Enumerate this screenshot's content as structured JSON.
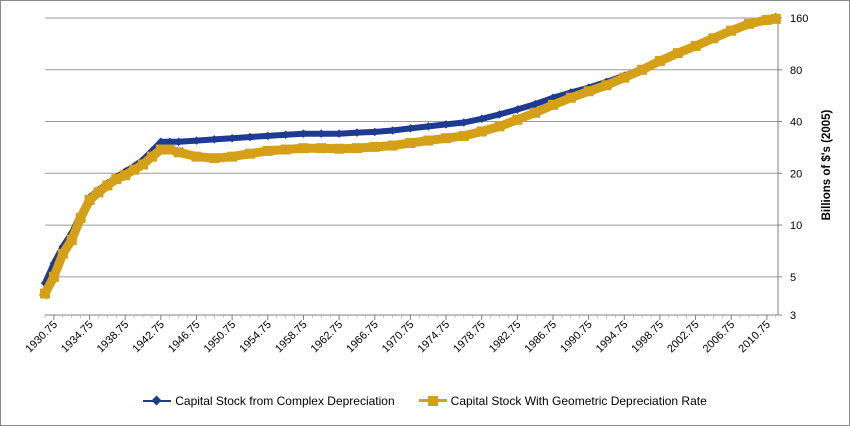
{
  "chart_data": {
    "type": "line",
    "ylabel": "Billions  of $'s (2005)",
    "y_scale": "log",
    "ylim": [
      3,
      160
    ],
    "y_ticks": [
      "3",
      "5",
      "10",
      "20",
      "40",
      "80",
      "160"
    ],
    "y_tick_values": [
      3,
      5,
      10,
      20,
      40,
      80,
      160
    ],
    "xlim": [
      1929.75,
      2012.0
    ],
    "x_tick_labels": [
      "1930.75",
      "1934.75",
      "1938.75",
      "1942.75",
      "1946.75",
      "1950.75",
      "1954.75",
      "1958.75",
      "1962.75",
      "1966.75",
      "1970.75",
      "1974.75",
      "1978.75",
      "1982.75",
      "1986.75",
      "1990.75",
      "1994.75",
      "1998.75",
      "2002.75",
      "2006.75",
      "2010.75"
    ],
    "x_tick_values": [
      1930.75,
      1934.75,
      1938.75,
      1942.75,
      1946.75,
      1950.75,
      1954.75,
      1958.75,
      1962.75,
      1966.75,
      1970.75,
      1974.75,
      1978.75,
      1982.75,
      1986.75,
      1990.75,
      1994.75,
      1998.75,
      2002.75,
      2006.75,
      2010.75
    ],
    "grid": true,
    "legend_position": "bottom",
    "series": [
      {
        "name": "Capital Stock from Complex Depreciation",
        "color": "#1f3a93",
        "marker": "diamond",
        "x": [
          1929.75,
          1930.75,
          1931.75,
          1932.75,
          1933.75,
          1934.75,
          1935.75,
          1936.75,
          1937.75,
          1938.75,
          1939.75,
          1940.75,
          1941.75,
          1942.75,
          1943.75,
          1944.75,
          1946.75,
          1948.75,
          1950.75,
          1952.75,
          1954.75,
          1956.75,
          1958.75,
          1960.75,
          1962.75,
          1964.75,
          1966.75,
          1968.75,
          1970.75,
          1972.75,
          1974.75,
          1976.75,
          1978.75,
          1980.75,
          1982.75,
          1984.75,
          1986.75,
          1988.75,
          1990.75,
          1992.75,
          1994.75,
          1996.75,
          1998.75,
          2000.75,
          2002.75,
          2004.75,
          2006.75,
          2008.75,
          2010.75,
          2011.75
        ],
        "y": [
          4.6,
          6.0,
          7.5,
          9.0,
          11.5,
          14.5,
          16.0,
          17.5,
          19.0,
          20.5,
          22.0,
          24.0,
          27.0,
          30.5,
          30.5,
          30.5,
          31.0,
          31.5,
          32.0,
          32.5,
          33.0,
          33.5,
          34.0,
          34.0,
          34.0,
          34.5,
          34.8,
          35.5,
          36.5,
          37.5,
          38.5,
          39.5,
          41.5,
          44.0,
          47.0,
          50.5,
          55.0,
          59.0,
          63.0,
          68.0,
          74.0,
          81.0,
          90.0,
          100.0,
          110.0,
          122.0,
          135.0,
          148.0,
          158.0,
          162.0
        ]
      },
      {
        "name": "Capital Stock With Geometric Depreciation Rate",
        "color": "#d4a017",
        "marker": "square",
        "x": [
          1929.75,
          1930.75,
          1931.75,
          1932.75,
          1933.75,
          1934.75,
          1935.75,
          1936.75,
          1937.75,
          1938.75,
          1939.75,
          1940.75,
          1941.75,
          1942.75,
          1943.75,
          1944.75,
          1946.75,
          1948.75,
          1950.75,
          1952.75,
          1954.75,
          1956.75,
          1958.75,
          1960.75,
          1962.75,
          1964.75,
          1966.75,
          1968.75,
          1970.75,
          1972.75,
          1974.75,
          1976.75,
          1978.75,
          1980.75,
          1982.75,
          1984.75,
          1986.75,
          1988.75,
          1990.75,
          1992.75,
          1994.75,
          1996.75,
          1998.75,
          2000.75,
          2002.75,
          2004.75,
          2006.75,
          2008.75,
          2010.75,
          2011.75
        ],
        "y": [
          4.0,
          5.0,
          6.8,
          8.2,
          11.0,
          14.0,
          15.5,
          17.0,
          18.5,
          19.5,
          21.0,
          22.5,
          25.0,
          27.5,
          27.5,
          26.5,
          25.0,
          24.5,
          25.0,
          26.0,
          27.0,
          27.5,
          28.0,
          28.0,
          27.8,
          28.0,
          28.5,
          29.0,
          30.0,
          31.0,
          32.0,
          33.0,
          35.0,
          37.5,
          41.0,
          45.0,
          50.0,
          55.0,
          60.0,
          65.0,
          72.0,
          80.0,
          90.0,
          100.0,
          110.0,
          122.0,
          135.0,
          148.0,
          156.0,
          158.0
        ]
      }
    ]
  }
}
